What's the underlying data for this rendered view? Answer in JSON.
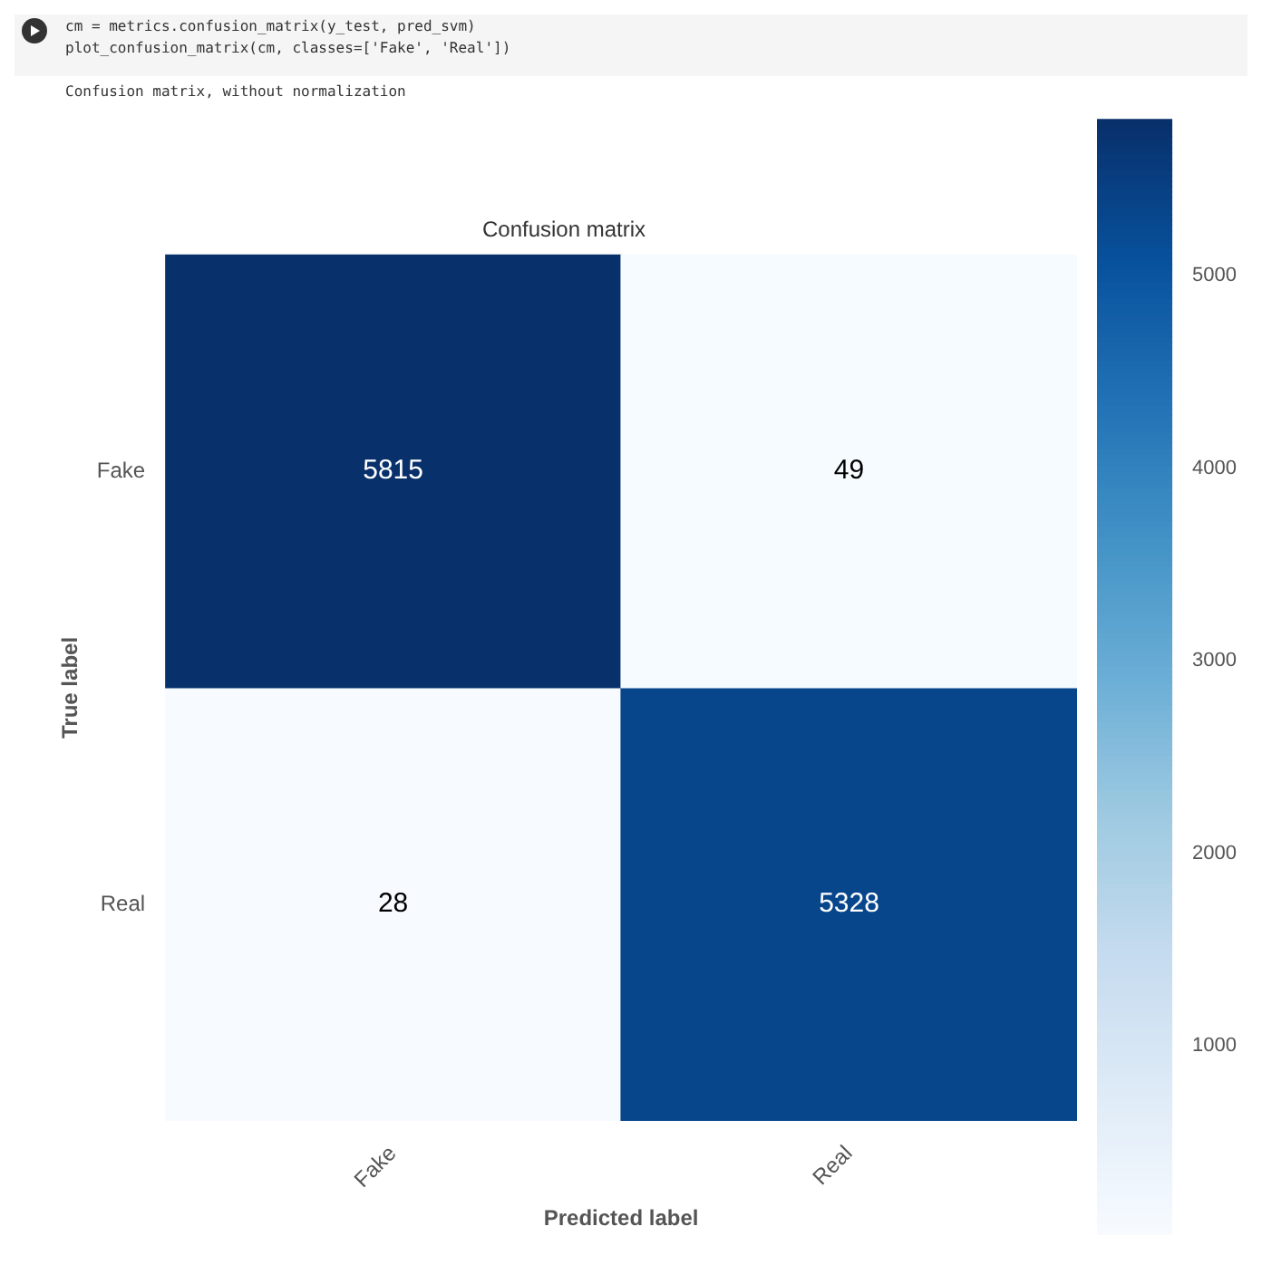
{
  "chart_data": {
    "type": "heatmap",
    "title": "Confusion matrix",
    "xlabel": "Predicted label",
    "ylabel": "True label",
    "categories": [
      "Fake",
      "Real"
    ],
    "y_categories": [
      "Fake",
      "Real"
    ],
    "cells": [
      [
        5815,
        49
      ],
      [
        28,
        5328
      ]
    ],
    "clim": [
      28,
      5815
    ],
    "cticks": [
      1000,
      2000,
      3000,
      4000,
      5000
    ],
    "data_labels": true,
    "annotations": [
      "cm = metrics.confusion_matrix(y_test, pred_svm)",
      "plot_confusion_matrix(cm, classes=['Fake', 'Real'])",
      "Confusion matrix, without normalization"
    ]
  }
}
